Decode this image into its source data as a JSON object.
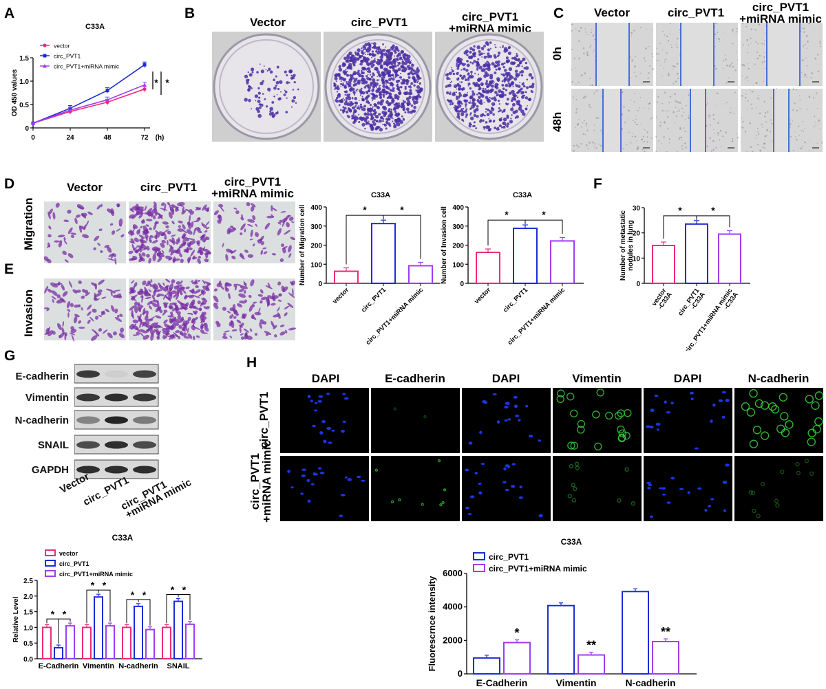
{
  "panel_labels": {
    "A": "A",
    "B": "B",
    "C": "C",
    "D": "D",
    "E": "E",
    "F": "F",
    "G": "G",
    "H": "H"
  },
  "panel_b": {
    "cols": [
      "Vector",
      "circ_PVT1",
      "circ_PVT1\n+miRNA mimic"
    ]
  },
  "panel_c": {
    "cols": [
      "Vector",
      "circ_PVT1",
      "circ_PVT1\n+miRNA mimic"
    ],
    "rows": [
      "0h",
      "48h"
    ]
  },
  "panel_de": {
    "cols": [
      "Vector",
      "circ_PVT1",
      "circ_PVT1\n+miRNA mimic"
    ],
    "rows": [
      "Migration",
      "Invasion"
    ]
  },
  "panel_g": {
    "rows": [
      "E-cadherin",
      "Vimentin",
      "N-cadherin",
      "SNAIL",
      "GAPDH"
    ],
    "cols": [
      "Vector",
      "circ_PVT1",
      "circ_PVT1\n+miRNA mimic"
    ]
  },
  "panel_h": {
    "cols": [
      "DAPI",
      "E-cadherin",
      "DAPI",
      "Vimentin",
      "DAPI",
      "N-cadherin"
    ],
    "rows": [
      "circ_PVT1",
      "circ_PVT1\n+miRNA mimic"
    ]
  },
  "colors": {
    "pink": "#ee2a7b",
    "blue": "#1d2bd6",
    "purple": "#a03cf0",
    "crystal": "#4b2fa3",
    "stain": "#7a2fa6",
    "dapi": "#1d3bff",
    "green": "#39d23a"
  },
  "chart_data": [
    {
      "id": "A",
      "type": "line",
      "title": "C33A",
      "xlabel": "(h)",
      "ylabel": "OD 450 values",
      "x": [
        0,
        24,
        48,
        72
      ],
      "xticks": [
        "0",
        "24",
        "48",
        "72"
      ],
      "ylim": [
        0,
        1.5
      ],
      "yticks": [
        "0",
        "0.5",
        "1.0",
        "1.5"
      ],
      "series": [
        {
          "name": "vector",
          "color": "#ee2a7b",
          "values": [
            0.1,
            0.35,
            0.55,
            0.83
          ]
        },
        {
          "name": "circ_PVT1",
          "color": "#1d2bd6",
          "values": [
            0.1,
            0.42,
            0.8,
            1.35
          ]
        },
        {
          "name": "circ_PVT1+miRNA mimic",
          "color": "#a03cf0",
          "values": [
            0.1,
            0.38,
            0.6,
            0.92
          ]
        }
      ],
      "annotations": [
        "*",
        "*"
      ]
    },
    {
      "id": "D-migration",
      "type": "bar",
      "title": "C33A",
      "ylabel": "Number of Migration cell",
      "categories": [
        "vector",
        "circ_PVT1",
        "circ_PVT1+miRNA mimic"
      ],
      "values": [
        63,
        313,
        92
      ],
      "colors": [
        "#ee2a7b",
        "#1d2bd6",
        "#a03cf0"
      ],
      "ylim": [
        0,
        400
      ],
      "yticks": [
        "0",
        "100",
        "200",
        "300",
        "400"
      ],
      "annotations": [
        "*",
        "*"
      ]
    },
    {
      "id": "D-invasion",
      "type": "bar",
      "title": "C33A",
      "ylabel": "Number of Invasion cell",
      "categories": [
        "vector",
        "circ_PVT1",
        "circ_PVT1+miRNA mimic"
      ],
      "values": [
        162,
        288,
        222
      ],
      "colors": [
        "#ee2a7b",
        "#1d2bd6",
        "#a03cf0"
      ],
      "ylim": [
        0,
        400
      ],
      "yticks": [
        "0",
        "100",
        "200",
        "300",
        "400"
      ],
      "annotations": [
        "*",
        "*"
      ]
    },
    {
      "id": "F",
      "type": "bar",
      "title": "",
      "ylabel": "Number of metastatic\nnodules in lung",
      "categories": [
        "vector\n-C33A",
        "circ_PVT1\n-C33A",
        "circ_PVT1+miRNA mimic\n-C33A"
      ],
      "values": [
        15,
        23.5,
        19.5
      ],
      "colors": [
        "#ee2a7b",
        "#1d2bd6",
        "#a03cf0"
      ],
      "ylim": [
        0,
        30
      ],
      "yticks": [
        "0",
        "10",
        "20",
        "30"
      ],
      "annotations": [
        "*",
        "*"
      ]
    },
    {
      "id": "G-quant",
      "type": "bar",
      "title": "C33A",
      "ylabel": "Relative Level",
      "categories": [
        "E-Cadherin",
        "Vimentin",
        "N-cadherin",
        "SNAIL"
      ],
      "series": [
        {
          "name": "vector",
          "color": "#ee2a7b",
          "values": [
            1.0,
            1.0,
            1.0,
            1.0
          ]
        },
        {
          "name": "circ_PVT1",
          "color": "#1d2bd6",
          "values": [
            0.35,
            1.97,
            1.67,
            1.83
          ]
        },
        {
          "name": "circ_PVT1+miRNA mimic",
          "color": "#a03cf0",
          "values": [
            1.05,
            1.05,
            0.93,
            1.1
          ]
        }
      ],
      "ylim": [
        0,
        2.5
      ],
      "yticks": [
        "0.0",
        "0.5",
        "1.0",
        "1.5",
        "2.0",
        "2.5"
      ],
      "annotations": [
        "*",
        "*",
        "*",
        "*",
        "*",
        "*",
        "*",
        "*"
      ]
    },
    {
      "id": "H-quant",
      "type": "bar",
      "title": "C33A",
      "ylabel": "Fluorescrnce intensity",
      "categories": [
        "E-Cadherin",
        "Vimentin",
        "N-cadherin"
      ],
      "series": [
        {
          "name": "circ_PVT1",
          "color": "#1d2bd6",
          "values": [
            950,
            4080,
            4920
          ]
        },
        {
          "name": "circ_PVT1+miRNA mimic",
          "color": "#a03cf0",
          "values": [
            1870,
            1130,
            1930
          ]
        }
      ],
      "ylim": [
        0,
        6000
      ],
      "yticks": [
        "0",
        "2000",
        "4000",
        "6000"
      ],
      "annotations": [
        "*",
        "**",
        "**"
      ]
    }
  ]
}
